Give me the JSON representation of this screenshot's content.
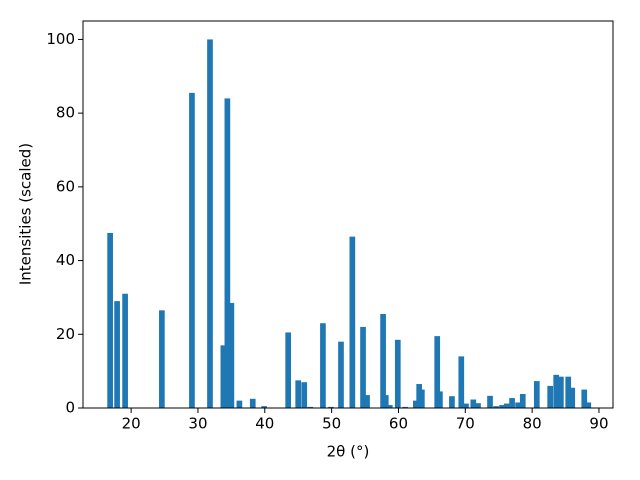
{
  "chart_data": {
    "type": "bar",
    "x_label": "2θ (°)",
    "y_label": "Intensities (scaled)",
    "x": [
      16.86,
      17.9,
      19.1,
      24.6,
      29.1,
      31.8,
      33.8,
      34.4,
      35.0,
      36.2,
      38.2,
      39.9,
      43.5,
      45.0,
      45.9,
      46.8,
      48.7,
      49.9,
      51.4,
      53.1,
      54.7,
      55.3,
      57.7,
      58.1,
      58.7,
      59.9,
      61.0,
      62.6,
      63.1,
      63.5,
      65.8,
      66.2,
      68.0,
      69.4,
      70.1,
      71.2,
      71.9,
      73.7,
      74.6,
      75.5,
      76.2,
      77.0,
      77.9,
      78.6,
      80.7,
      82.7,
      83.6,
      84.3,
      85.4,
      86.0,
      87.8,
      88.4
    ],
    "values": [
      47.5,
      29,
      31,
      26.5,
      85.5,
      100,
      17,
      84,
      28.5,
      2,
      2.5,
      0.5,
      20.5,
      7.5,
      7,
      0.3,
      23,
      0.3,
      18,
      46.5,
      22,
      3.5,
      25.5,
      3.5,
      0.8,
      18.5,
      0.3,
      2,
      6.5,
      5,
      19.5,
      4.5,
      3.2,
      14,
      1.2,
      2.3,
      1.3,
      3.3,
      0.5,
      0.8,
      1.2,
      2.7,
      1.5,
      3.8,
      7.3,
      6,
      9,
      8.5,
      8.5,
      5.5,
      5,
      1.5
    ],
    "color": "#1f77b4",
    "xlim": [
      12.8,
      92.1
    ],
    "xticks": [
      20,
      30,
      40,
      50,
      60,
      70,
      80,
      90
    ],
    "ylim": [
      0,
      105
    ],
    "yticks": [
      0,
      20,
      40,
      60,
      80,
      100
    ]
  }
}
